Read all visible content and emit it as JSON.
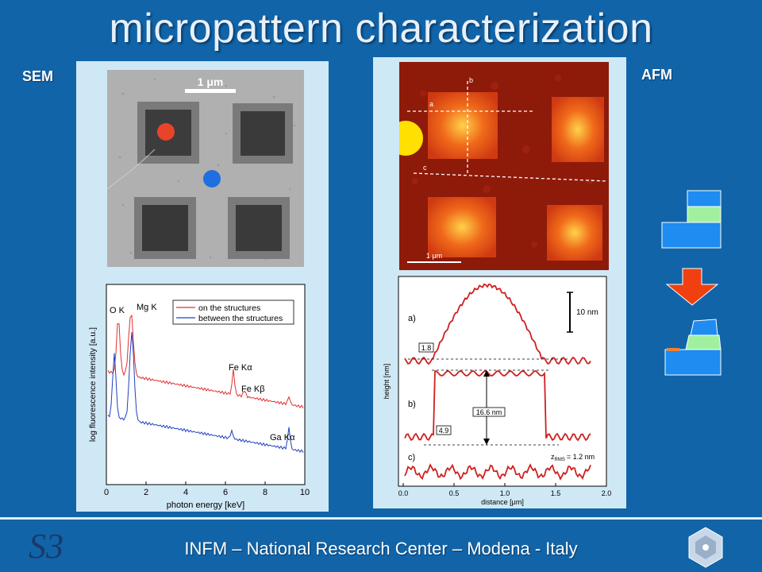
{
  "slide": {
    "title": "micropattern characterization",
    "sem_label": "SEM",
    "afm_label": "AFM",
    "footer": "INFM – National Research Center – Modena - Italy",
    "logo_text": "S3"
  },
  "sem_image": {
    "scale_label": "1 μm",
    "markers": [
      {
        "name": "on-structure-marker",
        "color": "#e8442a"
      },
      {
        "name": "between-structures-marker",
        "color": "#1e6fe0"
      }
    ]
  },
  "afm_image": {
    "scale_label": "1 μm",
    "line_labels": [
      "a",
      "b",
      "c"
    ]
  },
  "chart_data": [
    {
      "type": "line",
      "title": "",
      "xlabel": "photon energy [keV]",
      "ylabel": "log fluorescence intensity [a.u.]",
      "xlim": [
        0,
        10
      ],
      "x_ticks": [
        "0",
        "2",
        "4",
        "6",
        "8",
        "10"
      ],
      "legend": {
        "placement": "top-right",
        "entries": [
          "on the structures",
          "between the structures"
        ]
      },
      "annotations": [
        "O K",
        "Mg K",
        "Fe Kα",
        "Fe Kβ",
        "Ga Kα"
      ],
      "series": [
        {
          "name": "on the structures",
          "color": "#e03030"
        },
        {
          "name": "between the structures",
          "color": "#2040c0"
        }
      ]
    },
    {
      "type": "line",
      "title": "",
      "xlabel": "distance [μm]",
      "ylabel": "height [nm]",
      "xlim": [
        0.0,
        2.0
      ],
      "x_ticks": [
        "0.0",
        "0.5",
        "1.0",
        "1.5",
        "2.0"
      ],
      "scale_bar_label": "10 nm",
      "profiles": [
        {
          "name": "a)",
          "step_label": "1.8"
        },
        {
          "name": "b)",
          "step_label": "4.9",
          "height_label": "16.6 nm"
        },
        {
          "name": "c)",
          "rms_label": "z",
          "rms_sub": "RMS",
          "rms_value": "= 1.2 nm"
        }
      ]
    }
  ]
}
